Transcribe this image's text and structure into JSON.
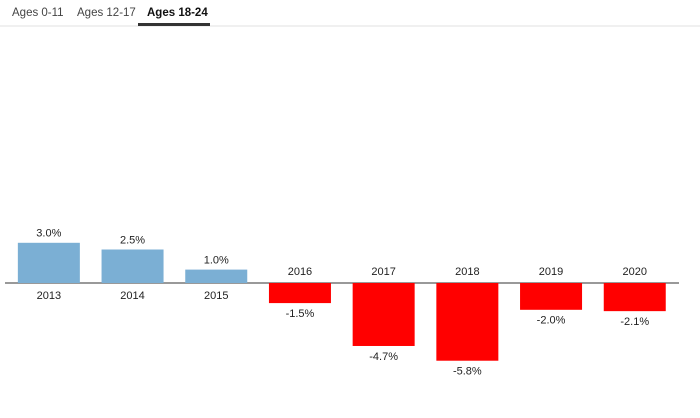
{
  "tabs": [
    "Ages 0-11",
    "Ages 12-17",
    "Ages 18-24"
  ],
  "active_tab": 2,
  "chart_data": {
    "type": "bar",
    "categories": [
      "2013",
      "2014",
      "2015",
      "2016",
      "2017",
      "2018",
      "2019",
      "2020"
    ],
    "values": [
      3.0,
      2.5,
      1.0,
      -1.5,
      -4.7,
      -5.8,
      -2.0,
      -2.1
    ],
    "value_labels": [
      "3.0%",
      "2.5%",
      "1.0%",
      "-1.5%",
      "-4.7%",
      "-5.8%",
      "-2.0%",
      "-2.1%"
    ],
    "colors": [
      "#7bafd4",
      "#7bafd4",
      "#7bafd4",
      "#ff0000",
      "#ff0000",
      "#ff0000",
      "#ff0000",
      "#ff0000"
    ]
  }
}
